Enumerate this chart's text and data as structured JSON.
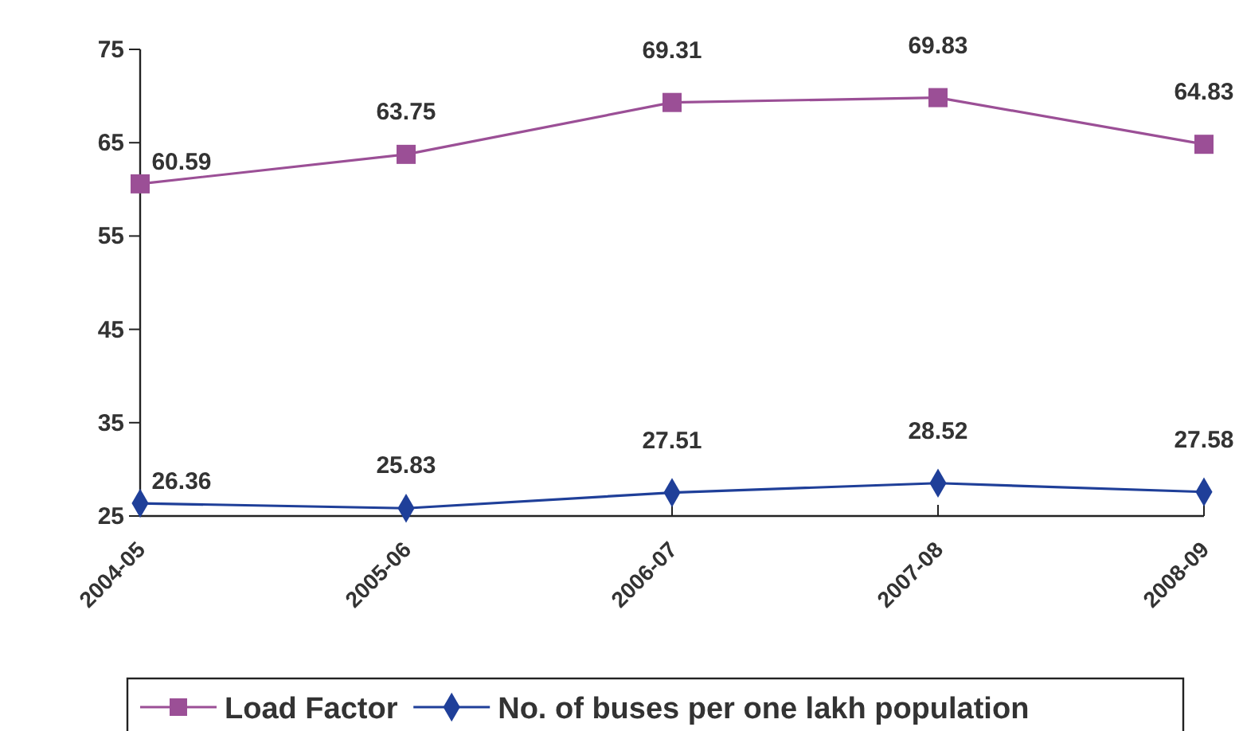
{
  "chart_data": {
    "type": "line",
    "categories": [
      "2004-05",
      "2005-06",
      "2006-07",
      "2007-08",
      "2008-09"
    ],
    "series": [
      {
        "name": "Load Factor",
        "color": "#9b4f96",
        "values": [
          60.59,
          63.75,
          69.31,
          69.83,
          64.83
        ],
        "marker": "square"
      },
      {
        "name": "No. of buses per one lakh population",
        "color": "#1f3f99",
        "values": [
          26.36,
          25.83,
          27.51,
          28.52,
          27.58
        ],
        "marker": "diamond"
      }
    ],
    "ylim": [
      25,
      75
    ],
    "yticks": [
      25,
      35,
      45,
      55,
      65,
      75
    ],
    "data_labels": true,
    "grid": false,
    "legend": "bottom",
    "line_style": "solid"
  }
}
